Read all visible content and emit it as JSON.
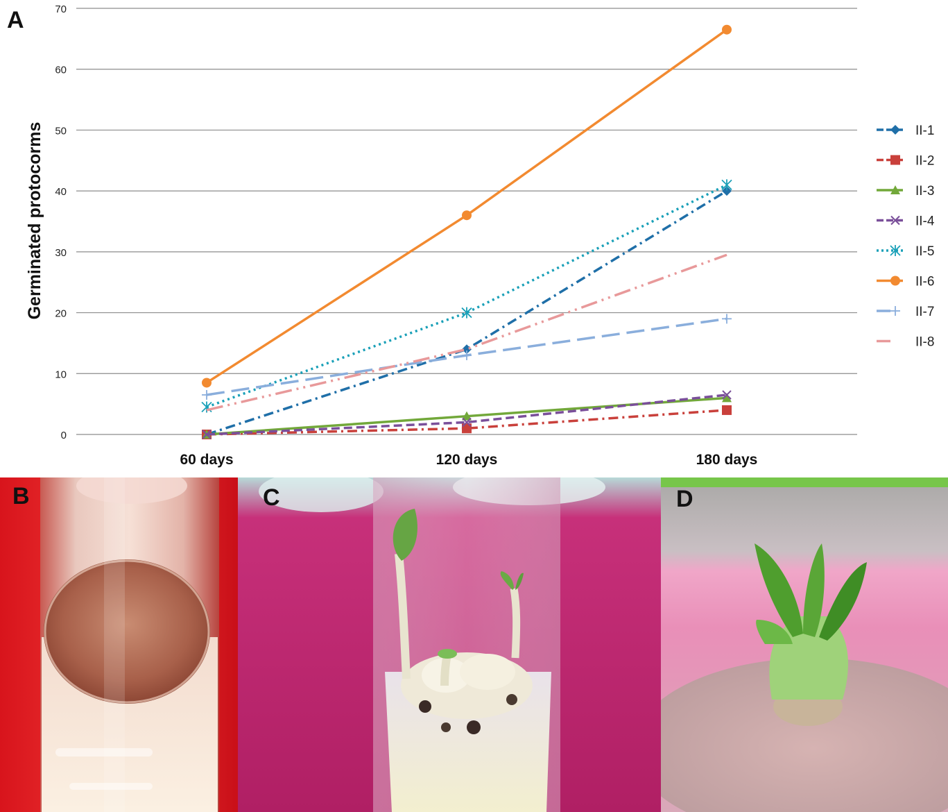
{
  "panel_labels": {
    "a": "A",
    "b": "B",
    "c": "C",
    "d": "D"
  },
  "chart_data": {
    "type": "line",
    "xlabel": "",
    "ylabel": "Germinated protocorms",
    "categories": [
      "60 days",
      "120 days",
      "180 days"
    ],
    "ylim": [
      0,
      70
    ],
    "yticks": [
      0,
      10,
      20,
      30,
      40,
      50,
      60,
      70
    ],
    "grid": "horizontal",
    "legend": "right",
    "series": [
      {
        "name": "II-1",
        "values": [
          0,
          14,
          40
        ],
        "color": "#1f6fa8",
        "dash": "dashdot",
        "marker": "diamond"
      },
      {
        "name": "II-2",
        "values": [
          0,
          1,
          4
        ],
        "color": "#c9403b",
        "dash": "dashdot",
        "marker": "square"
      },
      {
        "name": "II-3",
        "values": [
          0,
          3,
          6
        ],
        "color": "#72a83a",
        "dash": "solid",
        "marker": "triangle"
      },
      {
        "name": "II-4",
        "values": [
          0,
          2,
          6.5
        ],
        "color": "#7a4f9a",
        "dash": "dash",
        "marker": "x"
      },
      {
        "name": "II-5",
        "values": [
          4.5,
          20,
          41
        ],
        "color": "#1aa0b8",
        "dash": "dot",
        "marker": "star"
      },
      {
        "name": "II-6",
        "values": [
          8.5,
          36,
          66.5
        ],
        "color": "#f28a30",
        "dash": "solid",
        "marker": "circle"
      },
      {
        "name": "II-7",
        "values": [
          6.5,
          13,
          19
        ],
        "color": "#8aaedc",
        "dash": "longdash",
        "marker": "plus"
      },
      {
        "name": "II-8",
        "values": [
          4,
          14,
          29.5
        ],
        "color": "#e8999a",
        "dash": "longdashdotdot",
        "marker": "none"
      }
    ]
  }
}
